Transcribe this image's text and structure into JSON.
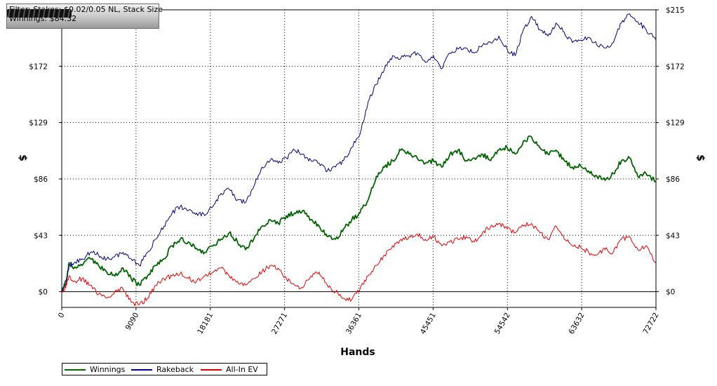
{
  "infobox": {
    "filter_text": "Filter: Stakes: $0.02/0.05 NL, Stack Size",
    "winnings_text": "Winnings: $84.32"
  },
  "chart_data": {
    "type": "line",
    "title": "",
    "xlabel": "Hands",
    "ylabel": "$",
    "y2label": "$",
    "xlim": [
      0,
      72722
    ],
    "ylim": [
      -12,
      215
    ],
    "x_ticks": [
      0,
      9090,
      18181,
      27271,
      36361,
      45451,
      54542,
      63632,
      72722
    ],
    "y_ticks": [
      0,
      43,
      86,
      129,
      172,
      215
    ],
    "y_tick_labels": [
      "$0",
      "$43",
      "$86",
      "$129",
      "$172",
      "$215"
    ],
    "grid": true,
    "legend_position": "bottom-left",
    "series": [
      {
        "name": "Winnings",
        "color": "#006400",
        "x": [
          0,
          500,
          900,
          1500,
          2500,
          3500,
          4500,
          5500,
          6500,
          7500,
          8500,
          9500,
          10500,
          11500,
          12500,
          13500,
          14500,
          15500,
          16500,
          17500,
          18500,
          19500,
          20500,
          21500,
          22500,
          23500,
          24500,
          25500,
          26500,
          27500,
          28500,
          29500,
          30500,
          31500,
          32500,
          33500,
          34500,
          35500,
          36500,
          37500,
          38500,
          39500,
          40500,
          41500,
          42500,
          43500,
          44500,
          45500,
          46500,
          47500,
          48500,
          49500,
          50500,
          51500,
          52500,
          53500,
          54500,
          55500,
          56500,
          57500,
          58500,
          59500,
          60500,
          61500,
          62500,
          63500,
          64500,
          65500,
          66500,
          67500,
          68500,
          69500,
          70500,
          71500,
          72722
        ],
        "y": [
          0,
          5,
          22,
          18,
          20,
          25,
          20,
          15,
          12,
          18,
          10,
          5,
          12,
          20,
          25,
          35,
          40,
          38,
          33,
          30,
          35,
          40,
          45,
          38,
          32,
          40,
          50,
          55,
          52,
          58,
          60,
          62,
          55,
          50,
          42,
          40,
          48,
          55,
          60,
          70,
          88,
          95,
          100,
          108,
          105,
          102,
          98,
          100,
          95,
          105,
          108,
          100,
          102,
          105,
          100,
          108,
          110,
          105,
          115,
          118,
          110,
          105,
          108,
          100,
          95,
          96,
          92,
          88,
          85,
          90,
          100,
          102,
          88,
          90,
          84
        ]
      },
      {
        "name": "Rakeback",
        "color": "#000080",
        "x": [
          0,
          500,
          900,
          1500,
          2500,
          3500,
          4500,
          5500,
          6500,
          7500,
          8500,
          9500,
          10500,
          11500,
          12500,
          13500,
          14500,
          15500,
          16500,
          17500,
          18500,
          19500,
          20500,
          21500,
          22500,
          23500,
          24500,
          25500,
          26500,
          27500,
          28500,
          29500,
          30500,
          31500,
          32500,
          33500,
          34500,
          35500,
          36500,
          37500,
          38500,
          39500,
          40500,
          41500,
          42500,
          43500,
          44500,
          45500,
          46500,
          47500,
          48500,
          49500,
          50500,
          51500,
          52500,
          53500,
          54500,
          55500,
          56500,
          57500,
          58500,
          59500,
          60500,
          61500,
          62500,
          63500,
          64500,
          65500,
          66500,
          67500,
          68500,
          69500,
          70500,
          71500,
          72722
        ],
        "y": [
          0,
          8,
          20,
          22,
          25,
          30,
          28,
          25,
          27,
          30,
          25,
          20,
          30,
          40,
          50,
          60,
          65,
          62,
          60,
          58,
          65,
          75,
          78,
          70,
          68,
          80,
          95,
          100,
          98,
          102,
          108,
          105,
          100,
          98,
          92,
          95,
          100,
          110,
          120,
          145,
          158,
          170,
          180,
          178,
          180,
          182,
          175,
          180,
          170,
          182,
          185,
          186,
          182,
          188,
          190,
          195,
          185,
          180,
          200,
          210,
          200,
          195,
          205,
          198,
          190,
          192,
          194,
          188,
          186,
          190,
          205,
          212,
          206,
          200,
          192
        ]
      },
      {
        "name": "All-In EV",
        "color": "#e00000",
        "x": [
          0,
          500,
          900,
          1500,
          2500,
          3500,
          4500,
          5500,
          6500,
          7500,
          8500,
          9500,
          10500,
          11500,
          12500,
          13500,
          14500,
          15500,
          16500,
          17500,
          18500,
          19500,
          20500,
          21500,
          22500,
          23500,
          24500,
          25500,
          26500,
          27500,
          28500,
          29500,
          30500,
          31500,
          32500,
          33500,
          34500,
          35500,
          36500,
          37500,
          38500,
          39500,
          40500,
          41500,
          42500,
          43500,
          44500,
          45500,
          46500,
          47500,
          48500,
          49500,
          50500,
          51500,
          52500,
          53500,
          54500,
          55500,
          56500,
          57500,
          58500,
          59500,
          60500,
          61500,
          62500,
          63500,
          64500,
          65500,
          66500,
          67500,
          68500,
          69500,
          70500,
          71500,
          72722
        ],
        "y": [
          0,
          3,
          12,
          8,
          10,
          5,
          -2,
          -5,
          0,
          2,
          -8,
          -10,
          -5,
          5,
          10,
          12,
          14,
          10,
          8,
          12,
          15,
          18,
          12,
          8,
          5,
          10,
          15,
          20,
          18,
          10,
          5,
          3,
          12,
          15,
          5,
          0,
          -5,
          -6,
          2,
          12,
          20,
          28,
          35,
          40,
          42,
          44,
          40,
          42,
          35,
          38,
          40,
          42,
          38,
          45,
          50,
          52,
          48,
          45,
          50,
          52,
          45,
          40,
          50,
          40,
          35,
          34,
          30,
          28,
          32,
          30,
          40,
          42,
          32,
          35,
          22
        ]
      }
    ]
  }
}
